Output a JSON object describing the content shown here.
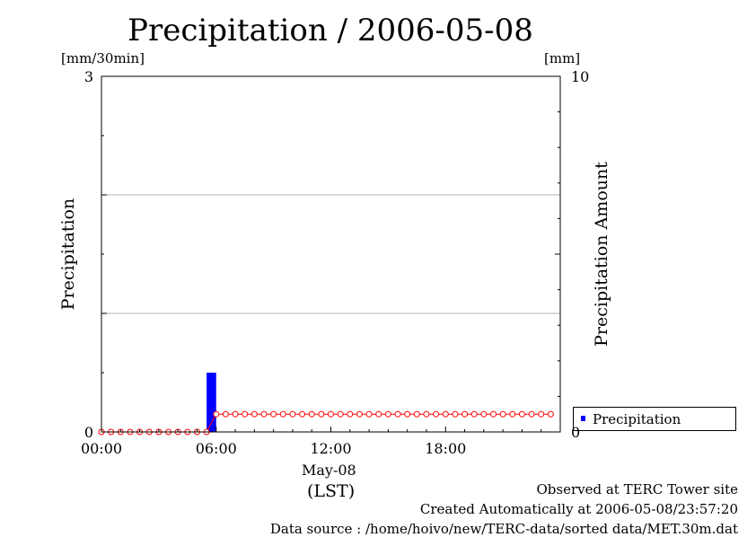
{
  "chart_data": {
    "type": "bar",
    "title": "Precipitation / 2006-05-08",
    "left_axis": {
      "unit": "[mm/30min]",
      "label": "Precipitation",
      "ylim": [
        0,
        3
      ],
      "ticks": [
        "0",
        "3"
      ],
      "gridlines": [
        1,
        2
      ]
    },
    "right_axis": {
      "unit": "[mm]",
      "label": "Precipitation Amount",
      "ylim": [
        0,
        10
      ],
      "ticks": [
        "0",
        "10"
      ]
    },
    "x_axis": {
      "range_hours": [
        0,
        24
      ],
      "ticks": [
        {
          "hour": 0,
          "label": "00:00"
        },
        {
          "hour": 6,
          "label": "06:00"
        },
        {
          "hour": 12,
          "label": "12:00"
        },
        {
          "hour": 18,
          "label": "18:00"
        }
      ],
      "date_label": "May-08",
      "timezone_label": "(LST)"
    },
    "series": [
      {
        "name": "Precipitation",
        "kind": "bar",
        "color": "#0000ff",
        "axis": "left",
        "bars": [
          {
            "start_hour": 5.5,
            "end_hour": 6.0,
            "value": 0.5
          }
        ]
      },
      {
        "kind": "line-circles",
        "color": "#ff0000",
        "axis": "right",
        "x_hours": [
          0,
          0.5,
          1,
          1.5,
          2,
          2.5,
          3,
          3.5,
          4,
          4.5,
          5,
          5.5,
          6,
          6.5,
          7,
          7.5,
          8,
          8.5,
          9,
          9.5,
          10,
          10.5,
          11,
          11.5,
          12,
          12.5,
          13,
          13.5,
          14,
          14.5,
          15,
          15.5,
          16,
          16.5,
          17,
          17.5,
          18,
          18.5,
          19,
          19.5,
          20,
          20.5,
          21,
          21.5,
          22,
          22.5,
          23,
          23.5
        ],
        "values": [
          0,
          0,
          0,
          0,
          0,
          0,
          0,
          0,
          0,
          0,
          0,
          0,
          0.5,
          0.5,
          0.5,
          0.5,
          0.5,
          0.5,
          0.5,
          0.5,
          0.5,
          0.5,
          0.5,
          0.5,
          0.5,
          0.5,
          0.5,
          0.5,
          0.5,
          0.5,
          0.5,
          0.5,
          0.5,
          0.5,
          0.5,
          0.5,
          0.5,
          0.5,
          0.5,
          0.5,
          0.5,
          0.5,
          0.5,
          0.5,
          0.5,
          0.5,
          0.5,
          0.5
        ]
      }
    ],
    "legend": {
      "entries": [
        "Precipitation"
      ],
      "position": "bottom-right"
    },
    "grid": true
  },
  "footer": {
    "observed": "Observed at TERC Tower site",
    "created": "Created Automatically at 2006-05-08/23:57:20",
    "source": "Data source : /home/hoivo/new/TERC-data/sorted  data/MET.30m.dat"
  }
}
